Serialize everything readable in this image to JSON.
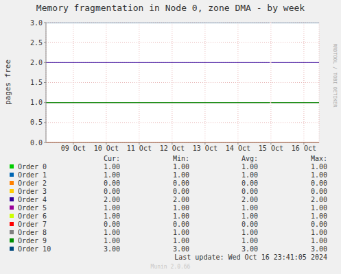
{
  "chart_data": {
    "type": "line",
    "title": "Memory fragmentation in Node 0, zone DMA - by week",
    "y_label": "pages free",
    "watermark": "RRDTOOL / TOBI OETIKER",
    "footer": "Last update: Wed Oct 16 23:41:05 2024",
    "credit": "Munin 2.0.66",
    "grid": true,
    "x": [
      8.17,
      14.97,
      14.99,
      15.01,
      16.46
    ],
    "xlim": [
      8.17,
      16.46
    ],
    "xticks": [
      {
        "value": 9,
        "label": "09 Oct"
      },
      {
        "value": 10,
        "label": "10 Oct"
      },
      {
        "value": 11,
        "label": "11 Oct"
      },
      {
        "value": 12,
        "label": "12 Oct"
      },
      {
        "value": 13,
        "label": "13 Oct"
      },
      {
        "value": 14,
        "label": "14 Oct"
      },
      {
        "value": 15,
        "label": "15 Oct"
      },
      {
        "value": 16,
        "label": "16 Oct"
      }
    ],
    "ylim": [
      0,
      3
    ],
    "yticks": [
      {
        "value": 0,
        "label": "0.0"
      },
      {
        "value": 0.5,
        "label": "0.5"
      },
      {
        "value": 1,
        "label": "1.0"
      },
      {
        "value": 1.5,
        "label": "1.5"
      },
      {
        "value": 2,
        "label": "2.0"
      },
      {
        "value": 2.5,
        "label": "2.5"
      },
      {
        "value": 3,
        "label": "3.0"
      }
    ],
    "stats_columns": [
      "Cur:",
      "Min:",
      "Avg:",
      "Max:"
    ],
    "series": [
      {
        "name": "Order 0",
        "color": "#00cc00",
        "values": [
          1,
          1,
          null,
          1,
          1
        ],
        "stats": [
          "1.00",
          "1.00",
          "1.00",
          "1.00"
        ]
      },
      {
        "name": "Order 1",
        "color": "#0066b3",
        "values": [
          1,
          1,
          null,
          1,
          1
        ],
        "stats": [
          "1.00",
          "1.00",
          "1.00",
          "1.00"
        ]
      },
      {
        "name": "Order 2",
        "color": "#ff8000",
        "values": [
          0,
          0,
          null,
          0,
          0
        ],
        "stats": [
          "0.00",
          "0.00",
          "0.00",
          "0.00"
        ]
      },
      {
        "name": "Order 3",
        "color": "#ffcc00",
        "values": [
          0,
          0,
          null,
          0,
          0
        ],
        "stats": [
          "0.00",
          "0.00",
          "0.00",
          "0.00"
        ]
      },
      {
        "name": "Order 4",
        "color": "#330099",
        "values": [
          2,
          2,
          null,
          2,
          2
        ],
        "stats": [
          "2.00",
          "2.00",
          "2.00",
          "2.00"
        ]
      },
      {
        "name": "Order 5",
        "color": "#990099",
        "values": [
          1,
          1,
          null,
          1,
          1
        ],
        "stats": [
          "1.00",
          "1.00",
          "1.00",
          "1.00"
        ]
      },
      {
        "name": "Order 6",
        "color": "#ccff00",
        "values": [
          1,
          1,
          null,
          1,
          1
        ],
        "stats": [
          "1.00",
          "1.00",
          "1.00",
          "1.00"
        ]
      },
      {
        "name": "Order 7",
        "color": "#ff0000",
        "values": [
          0,
          0,
          null,
          0,
          0
        ],
        "stats": [
          "0.00",
          "0.00",
          "0.00",
          "0.00"
        ]
      },
      {
        "name": "Order 8",
        "color": "#808080",
        "values": [
          1,
          1,
          null,
          1,
          1
        ],
        "stats": [
          "1.00",
          "1.00",
          "1.00",
          "1.00"
        ]
      },
      {
        "name": "Order 9",
        "color": "#008f00",
        "values": [
          1,
          1,
          null,
          1,
          1
        ],
        "stats": [
          "1.00",
          "1.00",
          "1.00",
          "1.00"
        ]
      },
      {
        "name": "Order 10",
        "color": "#00487d",
        "values": [
          3,
          3,
          null,
          3,
          3
        ],
        "stats": [
          "3.00",
          "3.00",
          "3.00",
          "3.00"
        ]
      }
    ]
  }
}
